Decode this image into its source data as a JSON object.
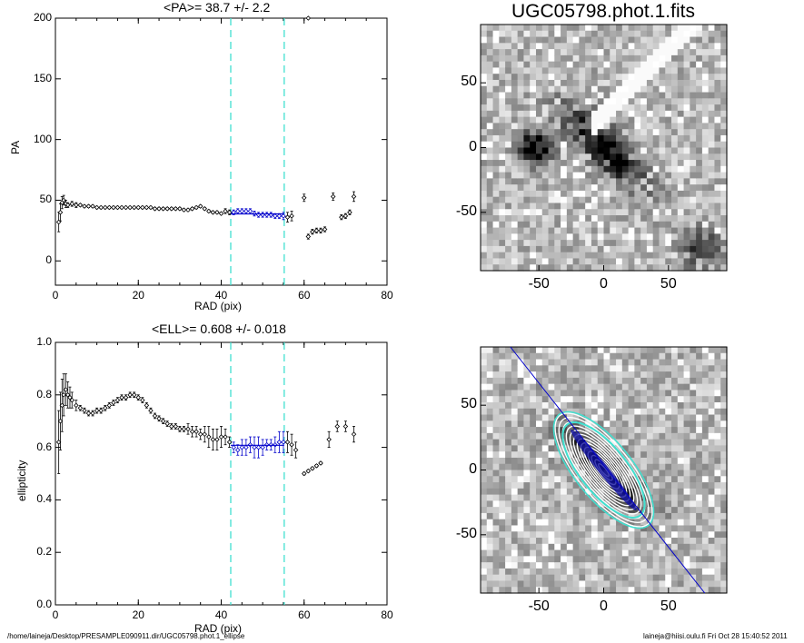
{
  "plots": {
    "pa": {
      "title": "<PA>=  38.7 +/-   2.2",
      "xlabel": "RAD (pix)",
      "ylabel": "PA",
      "xticks": [
        "0",
        "20",
        "40",
        "60",
        "80"
      ],
      "yticks": [
        "0",
        "50",
        "100",
        "150",
        "200"
      ]
    },
    "ell": {
      "title": "<ELL>= 0.608 +/-  0.018",
      "xlabel": "RAD (pix)",
      "ylabel": "ellipticity",
      "xticks": [
        "0",
        "20",
        "40",
        "60",
        "80"
      ],
      "yticks": [
        "0.0",
        "0.2",
        "0.4",
        "0.6",
        "0.8",
        "1.0"
      ]
    },
    "image_top": {
      "title": "UGC05798.phot.1.fits",
      "xticks": [
        "-50",
        "0",
        "50"
      ],
      "yticks": [
        "50",
        "0",
        "-50"
      ]
    },
    "image_bottom": {
      "xticks": [
        "-50",
        "0",
        "50"
      ],
      "yticks": [
        "50",
        "0",
        "-50"
      ]
    }
  },
  "footer": {
    "left": "/home/laineja/Desktop/PRESAMPLE090911.dir/UGC05798.phot.1_ellipse",
    "right": "laineja@hiisi.oulu.fi  Fri Oct 28 15:40:52 2011"
  },
  "colors": {
    "fit_band": "#0000cc",
    "cyan_marker": "#40e0d0",
    "points": "#000000"
  },
  "chart_data": [
    {
      "type": "scatter",
      "title": "<PA>=  38.7 +/-   2.2",
      "xlabel": "RAD (pix)",
      "ylabel": "PA",
      "xlim": [
        0,
        80
      ],
      "ylim": [
        -20,
        200
      ],
      "vlines": [
        42.3,
        55.2
      ],
      "fit_range": [
        42.3,
        55.2
      ],
      "fit_value": 38.7,
      "x": [
        0.8,
        1.2,
        1.6,
        2.0,
        2.5,
        3.0,
        4,
        5,
        6,
        7,
        8,
        9,
        10,
        11,
        12,
        13,
        14,
        15,
        16,
        17,
        18,
        19,
        20,
        21,
        22,
        23,
        24,
        25,
        26,
        27,
        28,
        29,
        30,
        31,
        32,
        33,
        34,
        35,
        36,
        37,
        38,
        39,
        40,
        41,
        42,
        43,
        44,
        45,
        46,
        47,
        48,
        49,
        50,
        51,
        52,
        53,
        54,
        55,
        56,
        57,
        58,
        59,
        60,
        61,
        62,
        63,
        64,
        65,
        66,
        67,
        68,
        69,
        70,
        71,
        72
      ],
      "y": [
        32,
        40,
        48,
        50,
        47,
        46,
        47,
        46,
        46,
        45,
        45,
        45,
        44,
        44,
        44,
        44,
        44,
        44,
        44,
        44,
        44,
        44,
        44,
        44,
        44,
        44,
        43,
        43,
        43,
        43,
        43,
        43,
        43,
        42,
        42,
        43,
        44,
        45,
        43,
        41,
        40,
        40,
        39,
        41,
        40,
        40,
        41,
        41,
        41,
        41,
        39,
        38,
        38,
        38,
        38,
        37,
        37,
        37,
        36,
        37,
        null,
        null,
        52,
        20,
        24,
        25,
        25,
        26,
        null,
        53,
        null,
        36,
        37,
        40,
        53
      ],
      "err": [
        8,
        7,
        5,
        4,
        3,
        2,
        2,
        2,
        1,
        1,
        1,
        1,
        1,
        1,
        1,
        1,
        1,
        1,
        1,
        1,
        1,
        1,
        1,
        1,
        1,
        1,
        1,
        1,
        1,
        1,
        1,
        1,
        1,
        1,
        1,
        1,
        1,
        1,
        1,
        1,
        1,
        1,
        1,
        2,
        2,
        2,
        2,
        2,
        2,
        2,
        2,
        2,
        2,
        2,
        2,
        2,
        2,
        3,
        4,
        4,
        null,
        null,
        3,
        2,
        2,
        2,
        2,
        2,
        null,
        3,
        null,
        2,
        2,
        2,
        4
      ],
      "outlier": {
        "x": 61,
        "y": 200
      }
    },
    {
      "type": "scatter",
      "title": "<ELL>= 0.608 +/-  0.018",
      "xlabel": "RAD (pix)",
      "ylabel": "ellipticity",
      "xlim": [
        0,
        80
      ],
      "ylim": [
        0.0,
        1.0
      ],
      "vlines": [
        42.3,
        55.2
      ],
      "fit_range": [
        42.3,
        55.2
      ],
      "fit_value": 0.608,
      "x": [
        0.8,
        1.2,
        1.6,
        2.0,
        2.5,
        3.0,
        3.5,
        4,
        5,
        6,
        7,
        8,
        9,
        10,
        11,
        12,
        13,
        14,
        15,
        16,
        17,
        18,
        19,
        20,
        21,
        22,
        23,
        24,
        25,
        26,
        27,
        28,
        29,
        30,
        31,
        32,
        33,
        34,
        35,
        36,
        37,
        38,
        39,
        40,
        41,
        42,
        43,
        44,
        45,
        46,
        47,
        48,
        49,
        50,
        51,
        52,
        53,
        54,
        55,
        56,
        57,
        58,
        60,
        61,
        62,
        63,
        64,
        66,
        68,
        70,
        72
      ],
      "y": [
        0.62,
        0.7,
        0.76,
        0.8,
        0.82,
        0.8,
        0.79,
        0.78,
        0.76,
        0.75,
        0.74,
        0.73,
        0.73,
        0.74,
        0.74,
        0.75,
        0.76,
        0.77,
        0.78,
        0.79,
        0.79,
        0.8,
        0.8,
        0.79,
        0.78,
        0.76,
        0.74,
        0.72,
        0.71,
        0.7,
        0.69,
        0.68,
        0.68,
        0.67,
        0.67,
        0.67,
        0.66,
        0.66,
        0.65,
        0.65,
        0.64,
        0.63,
        0.63,
        0.64,
        0.64,
        0.62,
        0.6,
        0.59,
        0.6,
        0.6,
        0.61,
        0.6,
        0.6,
        0.6,
        0.61,
        0.61,
        0.61,
        0.62,
        0.62,
        0.62,
        0.61,
        0.59,
        0.5,
        0.51,
        0.52,
        0.53,
        0.54,
        0.63,
        0.68,
        0.68,
        0.65
      ],
      "err": [
        0.12,
        0.11,
        0.1,
        0.08,
        0.06,
        0.05,
        0.04,
        0.03,
        0.02,
        0.01,
        0.01,
        0.01,
        0.01,
        0.01,
        0.01,
        0.01,
        0.01,
        0.01,
        0.01,
        0.01,
        0.01,
        0.01,
        0.01,
        0.01,
        0.01,
        0.01,
        0.01,
        0.01,
        0.01,
        0.01,
        0.01,
        0.01,
        0.01,
        0.01,
        0.01,
        0.02,
        0.02,
        0.02,
        0.02,
        0.03,
        0.04,
        0.04,
        0.04,
        0.04,
        0.03,
        0.02,
        0.02,
        0.02,
        0.03,
        0.03,
        0.03,
        0.04,
        0.04,
        0.03,
        0.02,
        0.02,
        0.03,
        0.04,
        0.04,
        0.04,
        0.04,
        0.03,
        0.005,
        0.005,
        0.005,
        0.005,
        0.005,
        0.03,
        0.02,
        0.02,
        0.03
      ]
    }
  ]
}
